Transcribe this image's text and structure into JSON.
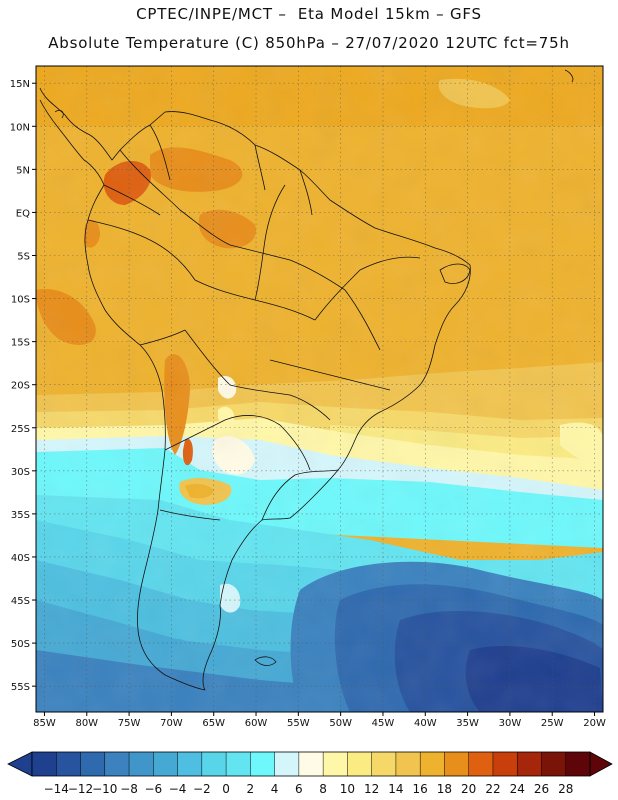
{
  "header": {
    "title_line1": "CPTEC/INPE/MCT –  Eta Model 15km – GFS",
    "title_line2": "Absolute Temperature (C) 850hPa – 27/07/2020 12UTC fct=75h"
  },
  "map": {
    "lat_labels": [
      "15N",
      "10N",
      "5N",
      "EQ",
      "5S",
      "10S",
      "15S",
      "20S",
      "25S",
      "30S",
      "35S",
      "40S",
      "45S",
      "50S",
      "55S"
    ],
    "lat_values": [
      15,
      10,
      5,
      0,
      -5,
      -10,
      -15,
      -20,
      -25,
      -30,
      -35,
      -40,
      -45,
      -50,
      -55
    ],
    "lon_labels": [
      "85W",
      "80W",
      "75W",
      "70W",
      "65W",
      "60W",
      "55W",
      "50W",
      "45W",
      "40W",
      "35W",
      "30W",
      "25W",
      "20W"
    ],
    "lon_values": [
      -85,
      -80,
      -75,
      -70,
      -65,
      -60,
      -55,
      -50,
      -45,
      -40,
      -35,
      -30,
      -25,
      -20
    ],
    "lat_range": [
      -58,
      17
    ],
    "lon_range": [
      -86,
      -19
    ]
  },
  "colorbar": {
    "labels": [
      "-14",
      "-12",
      "-10",
      "-8",
      "-6",
      "-4",
      "-2",
      "0",
      "2",
      "4",
      "6",
      "8",
      "10",
      "12",
      "14",
      "16",
      "18",
      "20",
      "22",
      "24",
      "26",
      "28"
    ],
    "colors": [
      "#1f3f8f",
      "#27539f",
      "#2f6aaf",
      "#3b82bf",
      "#4196c9",
      "#46a9d4",
      "#4ebfe0",
      "#59d5ea",
      "#63e5f1",
      "#6ef8fb",
      "#d4f6fb",
      "#fffbe6",
      "#fff7a8",
      "#fbeb83",
      "#f6d869",
      "#f1c44f",
      "#eeb22e",
      "#e88e1a",
      "#de6010",
      "#c93f0c",
      "#a5260a",
      "#7a1408",
      "#5e0509"
    ],
    "under_color": "#1f3f8f",
    "over_color": "#5e0509"
  }
}
